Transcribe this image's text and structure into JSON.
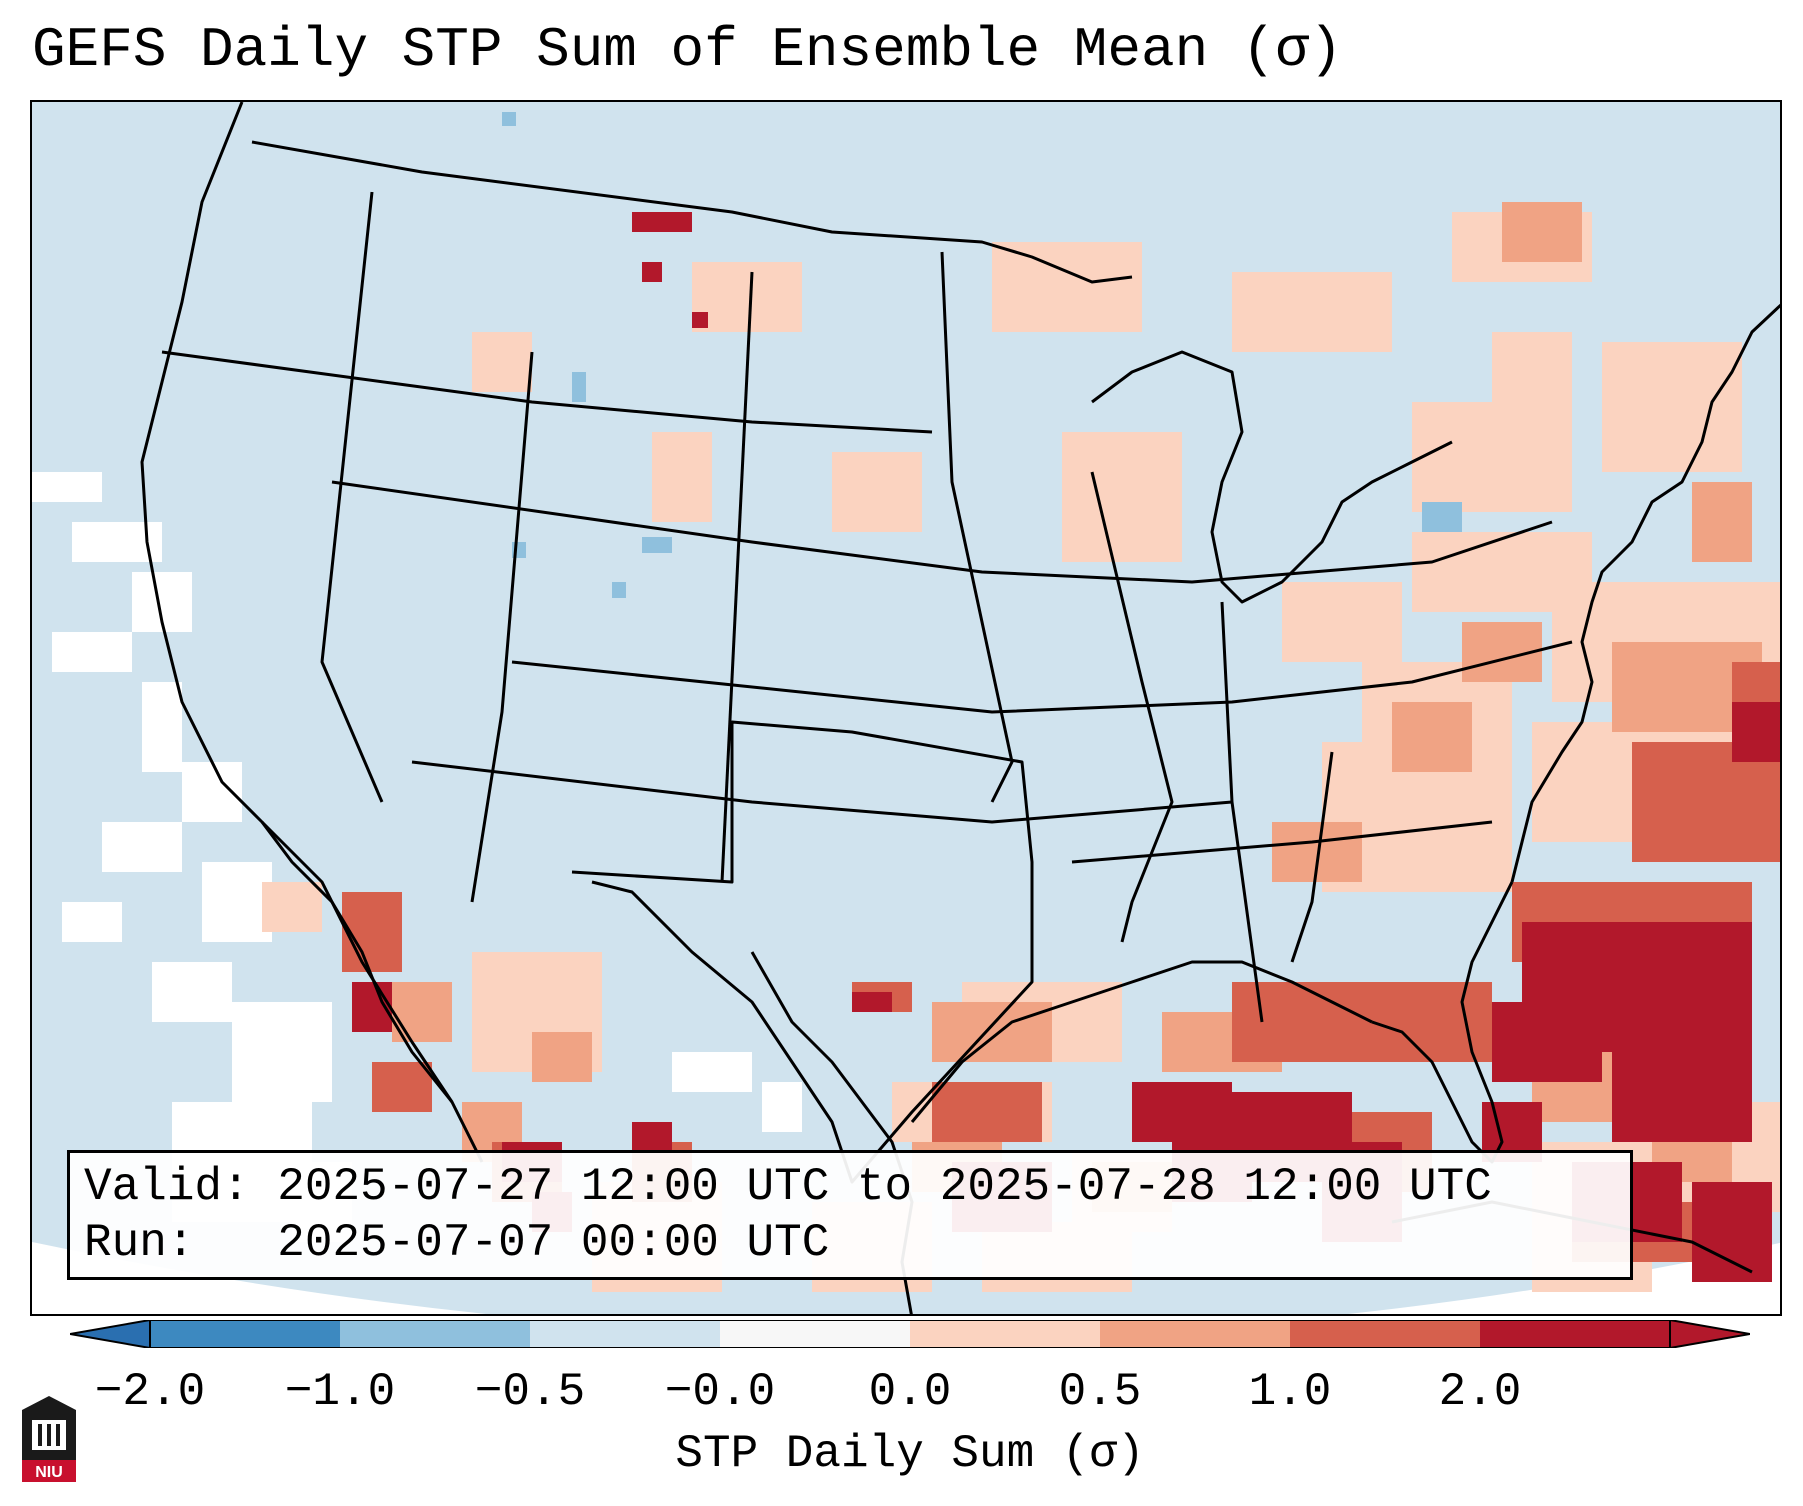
{
  "title": "GEFS Daily STP Sum of Ensemble Mean (σ)",
  "info_box": {
    "valid_line": "Valid: 2025-07-27 12:00 UTC to 2025-07-28 12:00 UTC",
    "run_line": "Run:   2025-07-07 00:00 UTC"
  },
  "colorbar": {
    "label": "STP Daily Sum (σ)",
    "ticks": [
      "−2.0",
      "−1.0",
      "−0.5",
      "−0.0",
      "0.0",
      "0.5",
      "1.0",
      "2.0"
    ],
    "bins": [
      {
        "range": "-2.0 to -1.0",
        "color": "#3d89c0"
      },
      {
        "range": "-1.0 to -0.5",
        "color": "#8fc0dd"
      },
      {
        "range": "-0.5 to -0.0",
        "color": "#d0e3ee"
      },
      {
        "range": "-0.0 to 0.0",
        "color": "#f7f7f7"
      },
      {
        "range": "0.0 to 0.5",
        "color": "#fbd3c0"
      },
      {
        "range": "0.5 to 1.0",
        "color": "#f0a384"
      },
      {
        "range": "1.0 to 2.0",
        "color": "#d6604d"
      },
      {
        "range": "> 2.0",
        "color": "#b2182b"
      }
    ],
    "extend_low_color": "#2a6fb0",
    "extend_high_color": "#b2182b"
  },
  "map": {
    "background_color": "#d0e3ee",
    "region": "Continental United States, northern Mexico, Gulf of Mexico",
    "highlights": [
      {
        "area": "Gulf of Mexico",
        "level": "> 2.0"
      },
      {
        "area": "Western Atlantic off Southeast US coast",
        "level": "> 2.0"
      },
      {
        "area": "Western Mexico / Sierra Madre",
        "level": "1.0 to 2.0"
      },
      {
        "area": "Upper Midwest and Northeast",
        "level": "0.0 to 0.5"
      }
    ]
  },
  "logo": {
    "text": "NIU",
    "name": "Northern Illinois University"
  }
}
